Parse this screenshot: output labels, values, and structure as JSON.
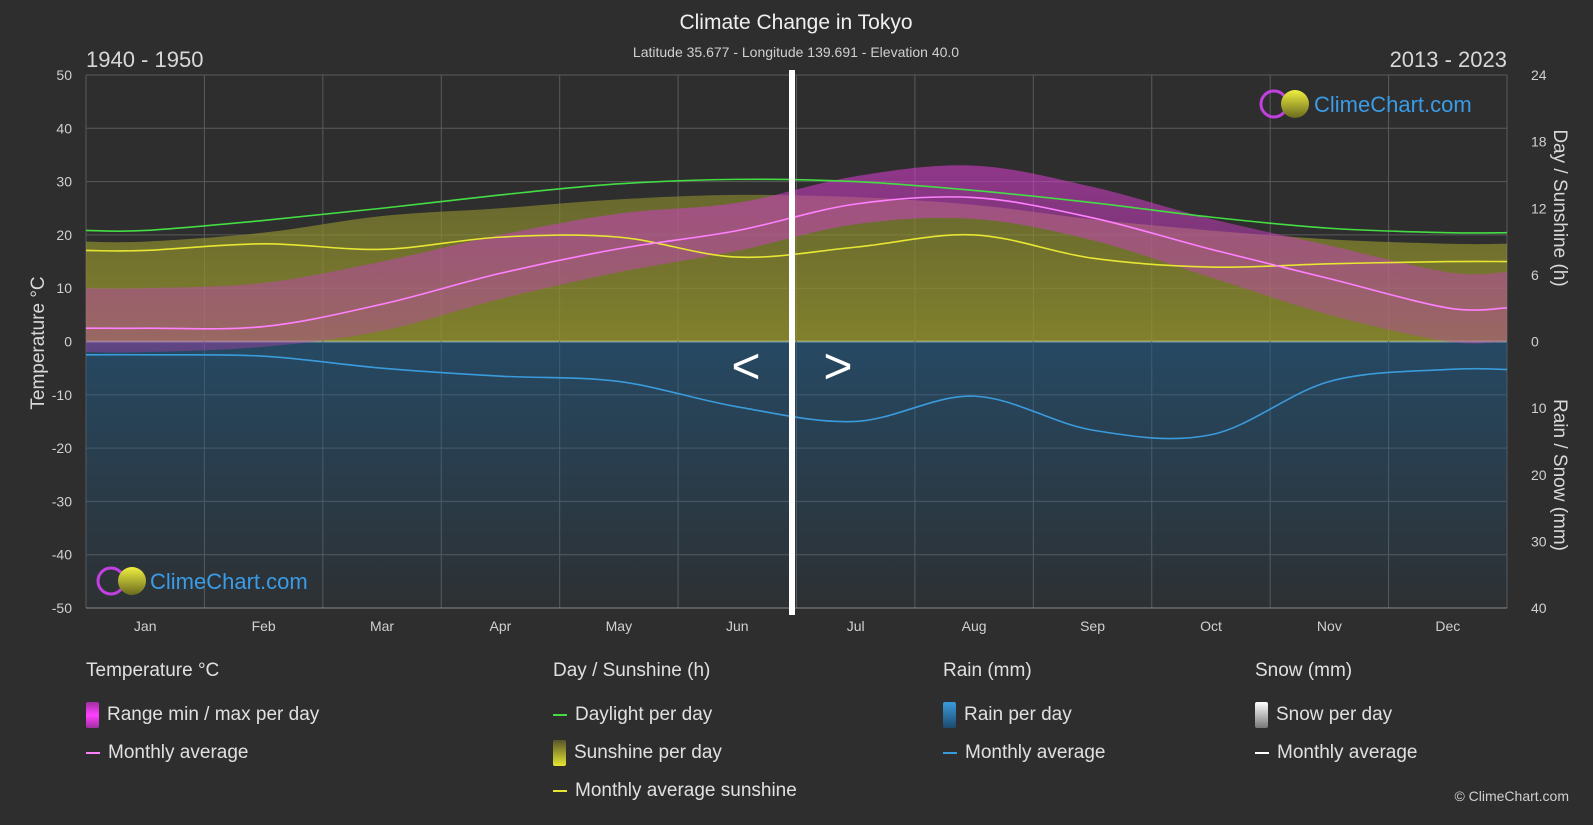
{
  "chart_data": {
    "type": "area",
    "title": "Climate Change in Tokyo",
    "subtitle": "Latitude 35.677 - Longitude 139.691 - Elevation 40.0",
    "period_left": "1940 - 1950",
    "period_right": "2013 - 2023",
    "months": [
      "Jan",
      "Feb",
      "Mar",
      "Apr",
      "May",
      "Jun",
      "Jul",
      "Aug",
      "Sep",
      "Oct",
      "Nov",
      "Dec"
    ],
    "y_left": {
      "label": "Temperature °C",
      "range": [
        -50,
        50
      ],
      "ticks": [
        50,
        40,
        30,
        20,
        10,
        0,
        -10,
        -20,
        -30,
        -40,
        -50
      ]
    },
    "y_right_top": {
      "label": "Day / Sunshine (h)",
      "range": [
        0,
        24
      ],
      "ticks": [
        24,
        18,
        12,
        6,
        0
      ]
    },
    "y_right_bottom": {
      "label": "Rain / Snow (mm)",
      "range": [
        0,
        40
      ],
      "ticks": [
        0,
        10,
        20,
        30,
        40
      ]
    },
    "split_month_index": 5.5,
    "nav_left": "<",
    "nav_right": ">",
    "series": [
      {
        "name": "Daylight per day",
        "unit": "h",
        "values": [
          10.0,
          10.9,
          12.0,
          13.2,
          14.2,
          14.6,
          14.4,
          13.6,
          12.5,
          11.2,
          10.2,
          9.8
        ]
      },
      {
        "name": "Monthly average sunshine",
        "unit": "h",
        "values": [
          8.2,
          8.8,
          8.3,
          9.4,
          9.4,
          7.6,
          8.5,
          9.6,
          7.5,
          6.7,
          7.0,
          7.2
        ]
      },
      {
        "name": "Temperature monthly average",
        "unit": "°C",
        "values": [
          2.5,
          2.8,
          7.0,
          12.8,
          17.4,
          20.8,
          25.8,
          27.0,
          23.2,
          17.3,
          11.8,
          6.3
        ]
      },
      {
        "name": "Rain monthly average",
        "unit": "mm",
        "values": [
          2.0,
          2.2,
          4.0,
          5.2,
          6.0,
          9.8,
          12.0,
          8.2,
          13.3,
          14.0,
          6.0,
          4.2
        ]
      }
    ],
    "sunshine_band_top_h": [
      9.0,
      9.8,
      11.3,
      12.0,
      12.8,
      13.2,
      13.0,
      12.3,
      11.0,
      10.0,
      9.2,
      8.8
    ],
    "temp_band_max": [
      10,
      11,
      15,
      20,
      24,
      26,
      31,
      33,
      29,
      23,
      18,
      13
    ],
    "temp_band_min": [
      -2,
      -1,
      2,
      8,
      13,
      17,
      22,
      23,
      19,
      12,
      5,
      0
    ]
  },
  "logo": {
    "text": "ClimeChart.com"
  },
  "legend": {
    "temperature": {
      "title": "Temperature °C",
      "items": [
        "Range min / max per day",
        "Monthly average"
      ]
    },
    "sunshine": {
      "title": "Day / Sunshine (h)",
      "items": [
        "Daylight per day",
        "Sunshine per day",
        "Monthly average sunshine"
      ]
    },
    "rain": {
      "title": "Rain (mm)",
      "items": [
        "Rain per day",
        "Monthly average"
      ]
    },
    "snow": {
      "title": "Snow (mm)",
      "items": [
        "Snow per day",
        "Monthly average"
      ]
    }
  },
  "copyright": "© ClimeChart.com",
  "colors": {
    "background": "#2e2e2e",
    "grid": "#5a5a5a",
    "daylight": "#44dd44",
    "sunshine_line": "#e6e633",
    "sunshine_fill": "#8c8c2a",
    "temp_range": "#d23cc8",
    "temp_avg": "#ff80ff",
    "rain": "#3a9bdc",
    "rain_fill": "#1e4a6e",
    "snow": "#ffffff",
    "logo_text": "#3a9be6"
  }
}
